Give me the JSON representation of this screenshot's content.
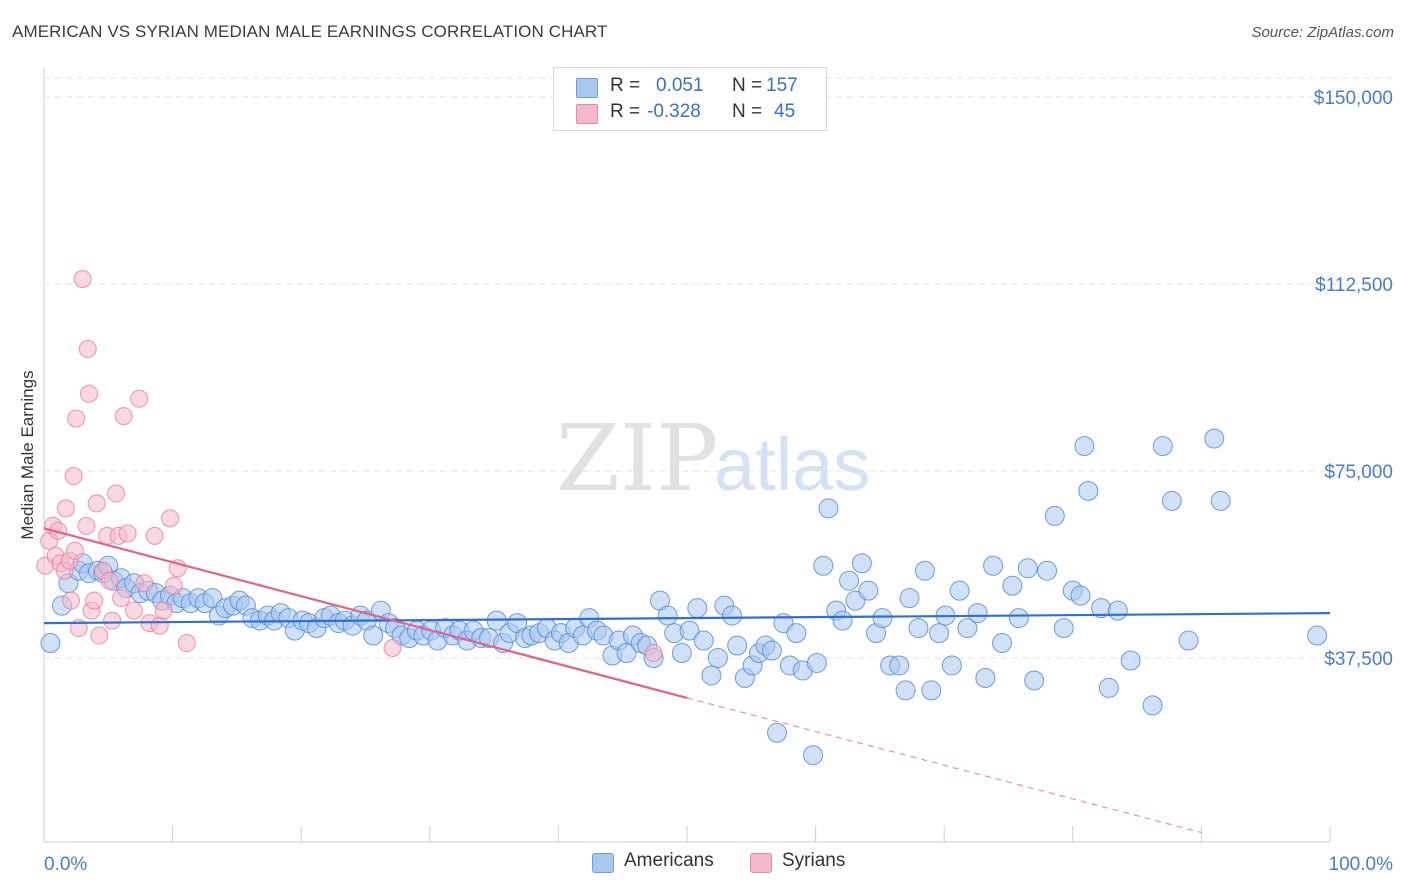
{
  "header": {
    "title": "AMERICAN VS SYRIAN MEDIAN MALE EARNINGS CORRELATION CHART",
    "source": "Source: ZipAtlas.com"
  },
  "watermark": {
    "zip": "ZIP",
    "atlas": "atlas"
  },
  "legend": {
    "rows": [
      {
        "r_label": "R =",
        "r_value": "0.051",
        "n_label": "N =",
        "n_value": "157",
        "color": "#a9c8f0"
      },
      {
        "r_label": "R =",
        "r_value": "-0.328",
        "n_label": "N =",
        "n_value": "45",
        "color": "#f6b8cb"
      }
    ]
  },
  "bottom_legend": [
    {
      "label": "Americans",
      "color": "#a9c8f0"
    },
    {
      "label": "Syrians",
      "color": "#f6b8cb"
    }
  ],
  "chart_data": {
    "type": "scatter",
    "title": "AMERICAN VS SYRIAN MEDIAN MALE EARNINGS CORRELATION CHART",
    "xlabel": "",
    "ylabel": "Median Male Earnings",
    "xlim": [
      0,
      100
    ],
    "ylim": [
      0,
      157000
    ],
    "x_tick_labels": [
      "0.0%",
      "100.0%"
    ],
    "y_ticks": [
      37500,
      75000,
      112500,
      150000
    ],
    "y_tick_labels": [
      "$37,500",
      "$75,000",
      "$112,500",
      "$150,000"
    ],
    "grid": true,
    "legend_placement": "top-center",
    "series": [
      {
        "name": "Americans",
        "color": "#4f86d6",
        "fill": "#a9c8f0",
        "trend": {
          "x": [
            0,
            100
          ],
          "y": [
            44500,
            46500
          ],
          "color": "#2f6fd0"
        },
        "points": [
          [
            0.5,
            40500
          ],
          [
            1.4,
            48000
          ],
          [
            1.9,
            52500
          ],
          [
            2.7,
            55000
          ],
          [
            3.0,
            56500
          ],
          [
            3.5,
            54500
          ],
          [
            4.2,
            55000
          ],
          [
            4.6,
            54500
          ],
          [
            5.0,
            56000
          ],
          [
            5.4,
            53000
          ],
          [
            6.0,
            53500
          ],
          [
            6.4,
            51500
          ],
          [
            7.0,
            52500
          ],
          [
            7.5,
            50500
          ],
          [
            8.1,
            51000
          ],
          [
            8.7,
            50500
          ],
          [
            9.2,
            49000
          ],
          [
            9.8,
            50000
          ],
          [
            10.3,
            48500
          ],
          [
            10.8,
            49500
          ],
          [
            11.4,
            48500
          ],
          [
            12.0,
            49500
          ],
          [
            12.5,
            48500
          ],
          [
            13.1,
            49500
          ],
          [
            13.6,
            46000
          ],
          [
            14.1,
            47500
          ],
          [
            14.7,
            48000
          ],
          [
            15.2,
            49000
          ],
          [
            15.7,
            48000
          ],
          [
            16.2,
            45500
          ],
          [
            16.8,
            45000
          ],
          [
            17.4,
            46000
          ],
          [
            17.9,
            45000
          ],
          [
            18.4,
            46500
          ],
          [
            19.0,
            45500
          ],
          [
            19.5,
            43000
          ],
          [
            20.1,
            45000
          ],
          [
            20.6,
            44500
          ],
          [
            21.2,
            43500
          ],
          [
            21.8,
            45500
          ],
          [
            22.3,
            46000
          ],
          [
            22.9,
            44500
          ],
          [
            23.4,
            45000
          ],
          [
            24.0,
            44000
          ],
          [
            24.6,
            46000
          ],
          [
            25.1,
            45000
          ],
          [
            25.6,
            42000
          ],
          [
            26.2,
            47000
          ],
          [
            26.8,
            44500
          ],
          [
            27.3,
            43500
          ],
          [
            27.8,
            42000
          ],
          [
            28.4,
            41500
          ],
          [
            29.0,
            43000
          ],
          [
            29.5,
            42000
          ],
          [
            30.1,
            43000
          ],
          [
            30.6,
            41000
          ],
          [
            31.2,
            43500
          ],
          [
            31.8,
            42000
          ],
          [
            32.3,
            43000
          ],
          [
            32.9,
            41000
          ],
          [
            33.4,
            43000
          ],
          [
            34.0,
            41500
          ],
          [
            34.6,
            41500
          ],
          [
            35.2,
            45000
          ],
          [
            35.7,
            40500
          ],
          [
            36.2,
            42500
          ],
          [
            36.8,
            44500
          ],
          [
            37.4,
            41500
          ],
          [
            37.9,
            42000
          ],
          [
            38.5,
            42500
          ],
          [
            39.1,
            43500
          ],
          [
            39.7,
            41000
          ],
          [
            40.2,
            42500
          ],
          [
            40.8,
            40500
          ],
          [
            41.3,
            43500
          ],
          [
            41.9,
            42000
          ],
          [
            42.4,
            45500
          ],
          [
            43.0,
            43000
          ],
          [
            43.5,
            42000
          ],
          [
            44.2,
            38000
          ],
          [
            44.7,
            41000
          ],
          [
            45.3,
            38500
          ],
          [
            45.8,
            42000
          ],
          [
            46.4,
            40500
          ],
          [
            46.9,
            40000
          ],
          [
            47.4,
            37500
          ],
          [
            47.9,
            49000
          ],
          [
            48.5,
            46000
          ],
          [
            49.0,
            42500
          ],
          [
            49.6,
            38500
          ],
          [
            50.2,
            43000
          ],
          [
            50.8,
            47500
          ],
          [
            51.3,
            41000
          ],
          [
            51.9,
            34000
          ],
          [
            52.4,
            37500
          ],
          [
            52.9,
            48000
          ],
          [
            53.5,
            46000
          ],
          [
            53.9,
            40000
          ],
          [
            54.5,
            33500
          ],
          [
            55.1,
            36000
          ],
          [
            55.6,
            38500
          ],
          [
            56.1,
            40000
          ],
          [
            56.6,
            39000
          ],
          [
            57.0,
            22500
          ],
          [
            57.5,
            44500
          ],
          [
            58.0,
            36000
          ],
          [
            58.5,
            42500
          ],
          [
            59.0,
            35000
          ],
          [
            59.8,
            18000
          ],
          [
            60.1,
            36500
          ],
          [
            60.6,
            56000
          ],
          [
            61.0,
            67500
          ],
          [
            61.6,
            47000
          ],
          [
            62.1,
            45000
          ],
          [
            62.6,
            53000
          ],
          [
            63.1,
            49000
          ],
          [
            63.6,
            56500
          ],
          [
            64.1,
            51000
          ],
          [
            64.7,
            42500
          ],
          [
            65.2,
            45500
          ],
          [
            65.8,
            36000
          ],
          [
            66.5,
            36000
          ],
          [
            67.0,
            31000
          ],
          [
            67.3,
            49500
          ],
          [
            68.0,
            43500
          ],
          [
            68.5,
            55000
          ],
          [
            69.0,
            31000
          ],
          [
            69.6,
            42500
          ],
          [
            70.1,
            46000
          ],
          [
            70.6,
            36000
          ],
          [
            71.2,
            51000
          ],
          [
            71.8,
            43500
          ],
          [
            72.6,
            46500
          ],
          [
            73.2,
            33500
          ],
          [
            73.8,
            56000
          ],
          [
            74.5,
            40500
          ],
          [
            75.3,
            52000
          ],
          [
            75.8,
            45500
          ],
          [
            76.5,
            55500
          ],
          [
            77.0,
            33000
          ],
          [
            78.0,
            55000
          ],
          [
            78.6,
            66000
          ],
          [
            79.3,
            43500
          ],
          [
            80.0,
            51000
          ],
          [
            80.6,
            50000
          ],
          [
            80.9,
            80000
          ],
          [
            81.2,
            71000
          ],
          [
            82.2,
            47500
          ],
          [
            82.8,
            31500
          ],
          [
            83.5,
            47000
          ],
          [
            84.5,
            37000
          ],
          [
            86.2,
            28000
          ],
          [
            87.0,
            80000
          ],
          [
            87.7,
            69000
          ],
          [
            89.0,
            41000
          ],
          [
            91.0,
            81500
          ],
          [
            91.5,
            69000
          ],
          [
            99.0,
            42000
          ]
        ]
      },
      {
        "name": "Syrians",
        "color": "#e87aa0",
        "fill": "#f6b8cb",
        "trend": {
          "x": [
            0,
            50
          ],
          "y": [
            63500,
            29500
          ],
          "color": "#e0628e"
        },
        "trend_extension": {
          "x": [
            50,
            90
          ],
          "y": [
            29500,
            2500
          ]
        },
        "points": [
          [
            0.1,
            56000
          ],
          [
            0.4,
            61000
          ],
          [
            0.7,
            64000
          ],
          [
            0.9,
            58000
          ],
          [
            1.1,
            63000
          ],
          [
            1.3,
            56500
          ],
          [
            1.6,
            55000
          ],
          [
            1.7,
            67500
          ],
          [
            2.0,
            57000
          ],
          [
            2.1,
            49000
          ],
          [
            2.3,
            74000
          ],
          [
            2.4,
            59000
          ],
          [
            2.5,
            85500
          ],
          [
            2.7,
            43500
          ],
          [
            3.0,
            113500
          ],
          [
            3.3,
            64000
          ],
          [
            3.4,
            99500
          ],
          [
            3.5,
            90500
          ],
          [
            3.7,
            47000
          ],
          [
            3.9,
            49000
          ],
          [
            4.1,
            68500
          ],
          [
            4.3,
            42000
          ],
          [
            4.6,
            55000
          ],
          [
            4.9,
            62000
          ],
          [
            5.1,
            53000
          ],
          [
            5.3,
            45000
          ],
          [
            5.6,
            70500
          ],
          [
            5.8,
            62000
          ],
          [
            6.0,
            49500
          ],
          [
            6.2,
            86000
          ],
          [
            6.5,
            62500
          ],
          [
            7.0,
            47000
          ],
          [
            7.4,
            89500
          ],
          [
            7.8,
            52500
          ],
          [
            8.2,
            44500
          ],
          [
            8.6,
            62000
          ],
          [
            9.0,
            44000
          ],
          [
            9.3,
            47000
          ],
          [
            9.8,
            65500
          ],
          [
            10.1,
            52000
          ],
          [
            10.4,
            55500
          ],
          [
            11.1,
            40500
          ],
          [
            27.1,
            39500
          ],
          [
            47.4,
            38500
          ]
        ]
      }
    ]
  }
}
